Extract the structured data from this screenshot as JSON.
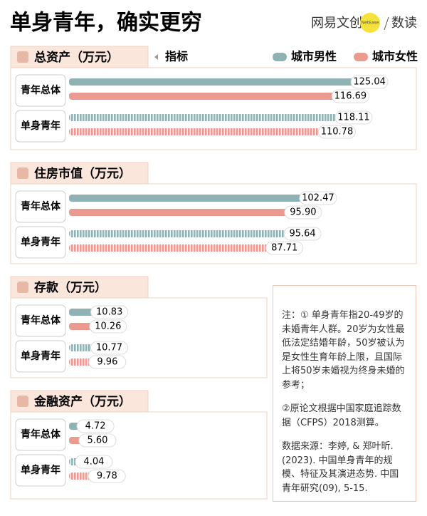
{
  "title": "单身青年，确实更穷",
  "logo": {
    "brand": "网易文创",
    "badge": "NetEase",
    "sub": "数读"
  },
  "indicator_label": "指标",
  "chart_data": [
    {
      "type": "bar",
      "title": "总资产（万元）",
      "categories": [
        "青年总体",
        "单身青年"
      ],
      "series": [
        {
          "name": "城市男性",
          "color": "#8fb3b4",
          "values": [
            125.04,
            118.11
          ],
          "value_labels": [
            "125.04",
            "118.11"
          ]
        },
        {
          "name": "城市女性",
          "color": "#eb9a8f",
          "values": [
            116.69,
            110.78
          ],
          "value_labels": [
            "116.69",
            "110.78"
          ]
        }
      ]
    },
    {
      "type": "bar",
      "title": "住房市值（万元）",
      "categories": [
        "青年总体",
        "单身青年"
      ],
      "series": [
        {
          "color": "#8fb3b4",
          "values": [
            102.47,
            95.64
          ],
          "value_labels": [
            "102.47",
            "95.64"
          ]
        },
        {
          "color": "#eb9a8f",
          "values": [
            95.9,
            87.71
          ],
          "value_labels": [
            "95.90",
            "87.71"
          ]
        }
      ]
    },
    {
      "type": "bar",
      "title": "存款（万元）",
      "categories": [
        "青年总体",
        "单身青年"
      ],
      "series": [
        {
          "color": "#8fb3b4",
          "values": [
            10.83,
            10.77
          ],
          "value_labels": [
            "10.83",
            "10.77"
          ]
        },
        {
          "color": "#eb9a8f",
          "values": [
            10.26,
            9.96
          ],
          "value_labels": [
            "10.26",
            "9.96"
          ]
        }
      ]
    },
    {
      "type": "bar",
      "title": "金融资产（万元）",
      "categories": [
        "青年总体",
        "单身青年"
      ],
      "series": [
        {
          "color": "#8fb3b4",
          "values": [
            4.72,
            4.04
          ],
          "value_labels": [
            "4.72",
            "4.04"
          ]
        },
        {
          "color": "#eb9a8f",
          "values": [
            5.6,
            9.78
          ],
          "value_labels": [
            "5.60",
            "9.78"
          ]
        }
      ]
    }
  ],
  "note": {
    "text": [
      "注：① 单身青年指20-49岁的未婚青年人群。20岁为女性最低法定结婚年龄，50岁被认为是女性生育年龄上限，且国际上将50岁未婚视为终身未婚的参考；",
      "②原论文根据中国家庭追踪数据（CFPS）2018测算。"
    ],
    "source": "数据来源：李婷, & 郑叶昕. (2023). 中国单身青年的规模、特征及其演进态势. 中国青年研究(09), 5-15."
  }
}
